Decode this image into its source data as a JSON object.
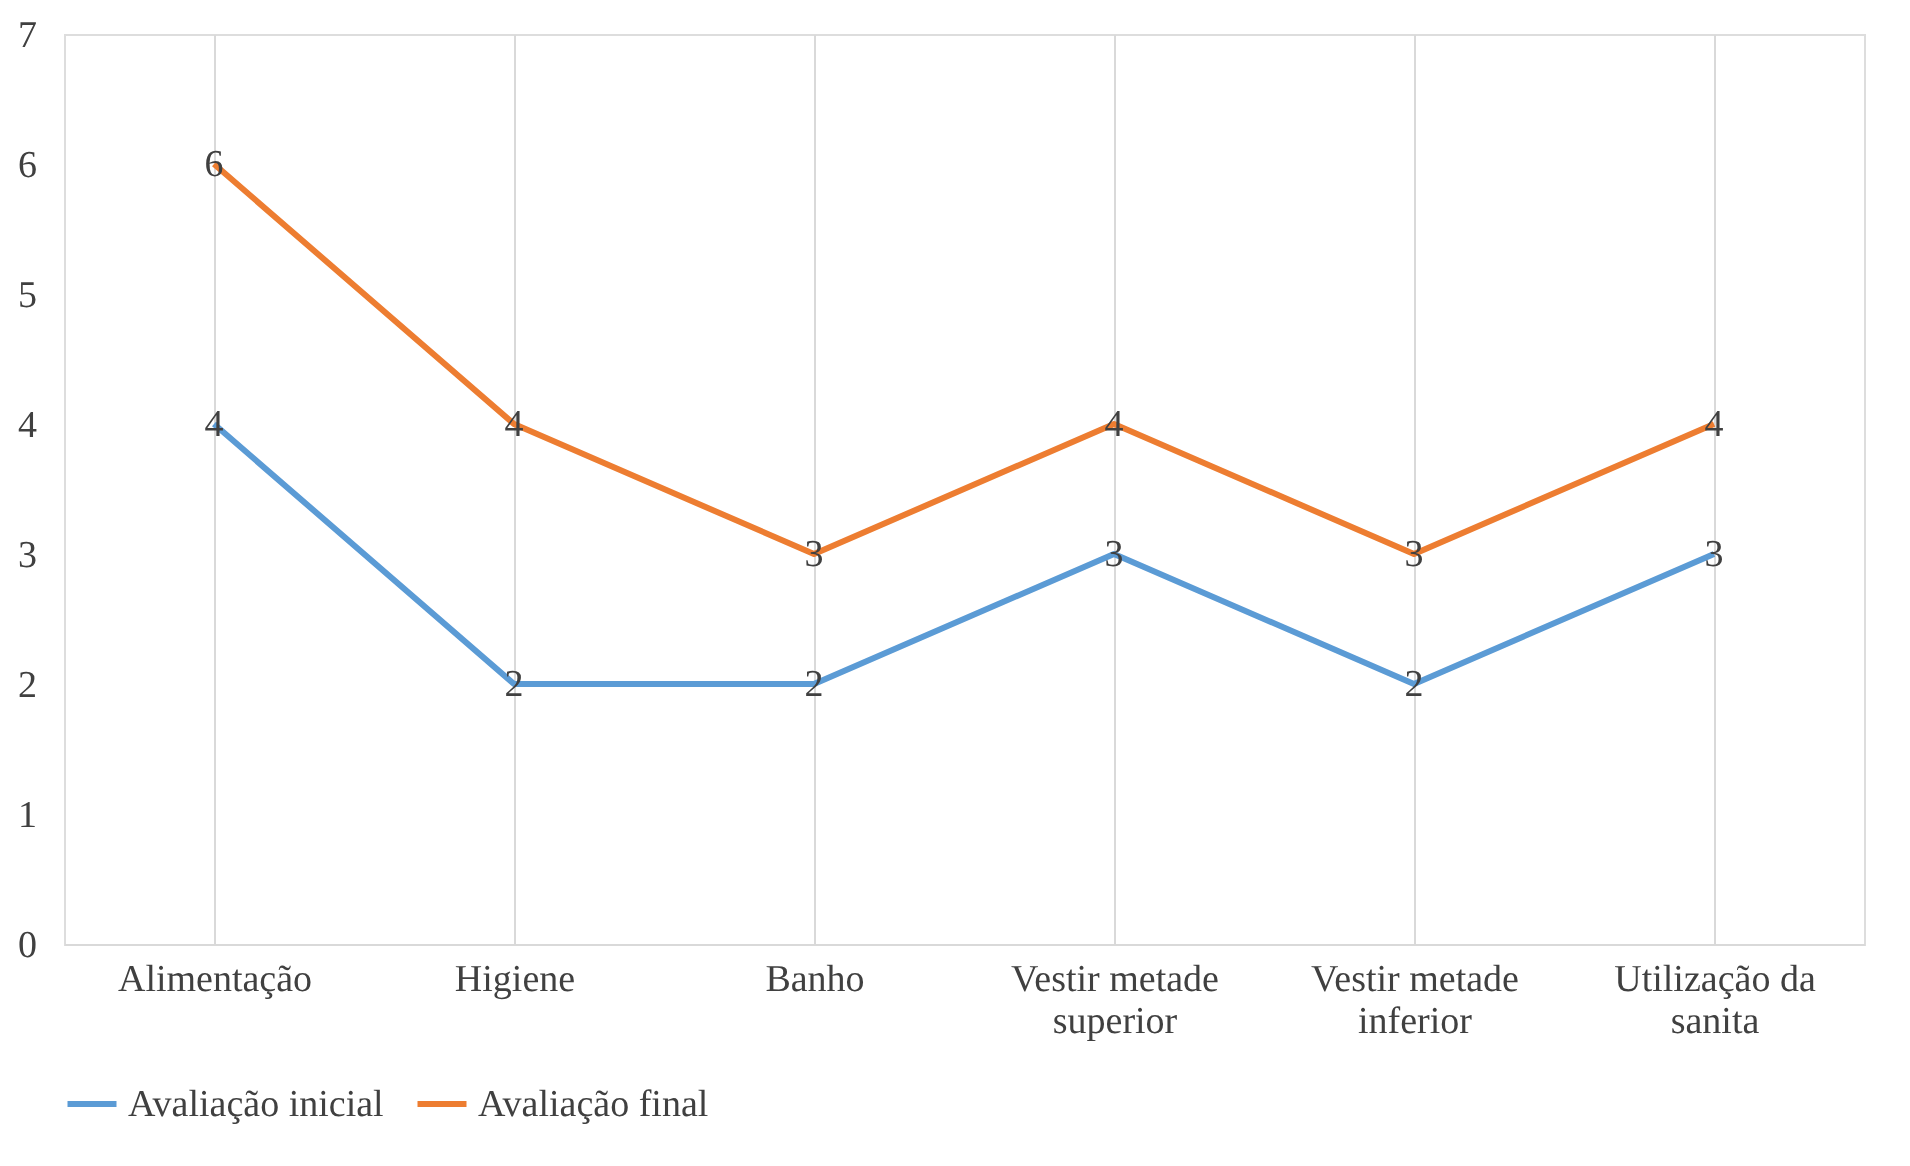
{
  "chart_data": {
    "type": "line",
    "categories": [
      "Alimentação",
      "Higiene",
      "Banho",
      "Vestir metade superior",
      "Vestir metade inferior",
      "Utilização da sanita"
    ],
    "series": [
      {
        "name": "Avaliação inicial",
        "color": "#5b9bd5",
        "values": [
          4,
          2,
          2,
          3,
          2,
          3
        ]
      },
      {
        "name": "Avaliação final",
        "color": "#ed7d31",
        "values": [
          6,
          4,
          3,
          4,
          3,
          4
        ]
      }
    ],
    "ylim": [
      0,
      7
    ],
    "yticks": [
      0,
      1,
      2,
      3,
      4,
      5,
      6,
      7
    ],
    "grid": "x",
    "legend": "bottom",
    "data_labels": true,
    "marker": "none",
    "line_style": "solid"
  }
}
